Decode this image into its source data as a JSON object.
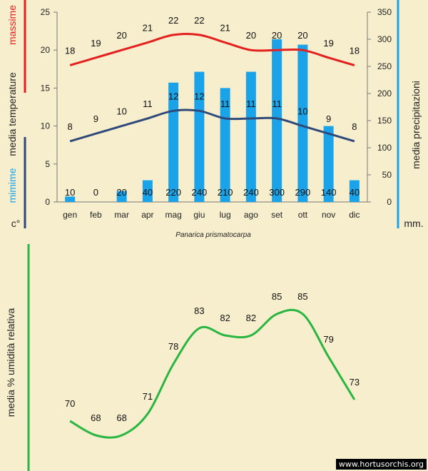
{
  "chart_data": [
    {
      "type": "bar+line",
      "title": "Panarica prismatocarpa",
      "categories": [
        "gen",
        "feb",
        "mar",
        "apr",
        "mag",
        "giu",
        "lug",
        "ago",
        "set",
        "ott",
        "nov",
        "dic"
      ],
      "left_axis": {
        "label_max": "massime",
        "label_mid": "media  temperature",
        "label_min": "mimime",
        "unit": "c°",
        "ylim": [
          0,
          25
        ],
        "ticks": [
          "0",
          "5",
          "10",
          "15",
          "20",
          "25"
        ]
      },
      "right_axis": {
        "label": "media  precipitazioni",
        "unit": "mm.",
        "ylim": [
          0,
          350
        ],
        "ticks": [
          "0",
          "50",
          "100",
          "150",
          "200",
          "250",
          "300",
          "350"
        ]
      },
      "series": [
        {
          "name": "massime",
          "kind": "line",
          "axis": "left",
          "color": "#e41f1f",
          "values": [
            18,
            19,
            20,
            21,
            22,
            22,
            21,
            20,
            20,
            20,
            19,
            18
          ]
        },
        {
          "name": "mimime",
          "kind": "line",
          "axis": "left",
          "color": "#2f4a7a",
          "values": [
            8,
            9,
            10,
            11,
            12,
            12,
            11,
            11,
            11,
            10,
            9,
            8
          ]
        },
        {
          "name": "media  precipitazioni",
          "kind": "bar",
          "axis": "right",
          "color": "#1aa3e8",
          "values": [
            10,
            0,
            20,
            40,
            220,
            240,
            210,
            240,
            300,
            290,
            140,
            40
          ]
        }
      ],
      "grid": false
    },
    {
      "type": "line",
      "ylabel": "media % umidità relativa",
      "categories": [
        "gen",
        "feb",
        "mar",
        "apr",
        "mag",
        "giu",
        "lug",
        "ago",
        "set",
        "ott",
        "nov",
        "dic"
      ],
      "series": [
        {
          "kind": "line",
          "color": "#28b540",
          "values": [
            70,
            68,
            68,
            71,
            78,
            83,
            82,
            82,
            85,
            85,
            79,
            73
          ]
        }
      ],
      "grid": false
    }
  ],
  "colors": {
    "background": "#f7eecd",
    "max_line": "#e41f1f",
    "min_line": "#2f4a7a",
    "bars": "#1aa3e8",
    "humidity": "#28b540",
    "axis_bar_right": "#1aa3e8",
    "axis_bar_bottom": "#28b540"
  },
  "watermark": "www.hortusorchis.org"
}
